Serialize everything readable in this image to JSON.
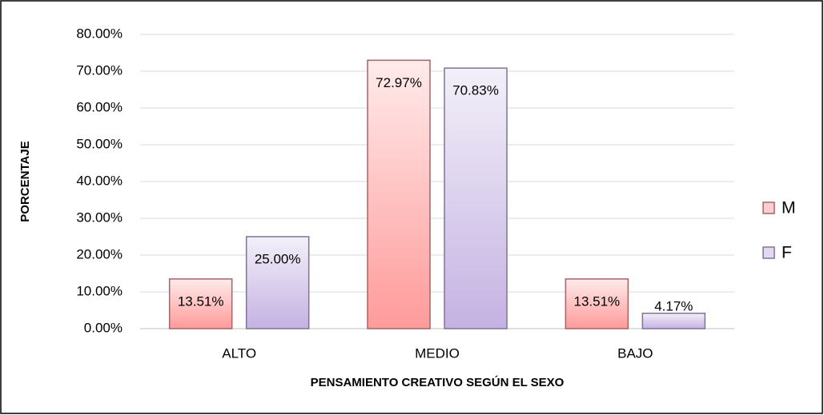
{
  "chart_data": {
    "type": "bar",
    "categories": [
      "ALTO",
      "MEDIO",
      "BAJO"
    ],
    "series": [
      {
        "name": "M",
        "color": "#ff9a9a",
        "values": [
          13.51,
          72.97,
          13.51
        ],
        "value_labels": [
          "13.51%",
          "72.97%",
          "13.51%"
        ]
      },
      {
        "name": "F",
        "color": "#c4b2e2",
        "values": [
          25.0,
          70.83,
          4.17
        ],
        "value_labels": [
          "25.00%",
          "70.83%",
          "4.17%"
        ]
      }
    ],
    "ylabel": "PORCENTAJE",
    "xlabel": "PENSAMIENTO CREATIVO SEGÚN EL SEXO",
    "ylim": [
      0,
      80
    ],
    "yticks": [
      {
        "value": 0,
        "label": "0.00%"
      },
      {
        "value": 10,
        "label": "10.00%"
      },
      {
        "value": 20,
        "label": "20.00%"
      },
      {
        "value": 30,
        "label": "30.00%"
      },
      {
        "value": 40,
        "label": "40.00%"
      },
      {
        "value": 50,
        "label": "50.00%"
      },
      {
        "value": 60,
        "label": "60.00%"
      },
      {
        "value": 70,
        "label": "70.00%"
      },
      {
        "value": 80,
        "label": "80.00%"
      }
    ],
    "grid": true,
    "legend": "right"
  }
}
